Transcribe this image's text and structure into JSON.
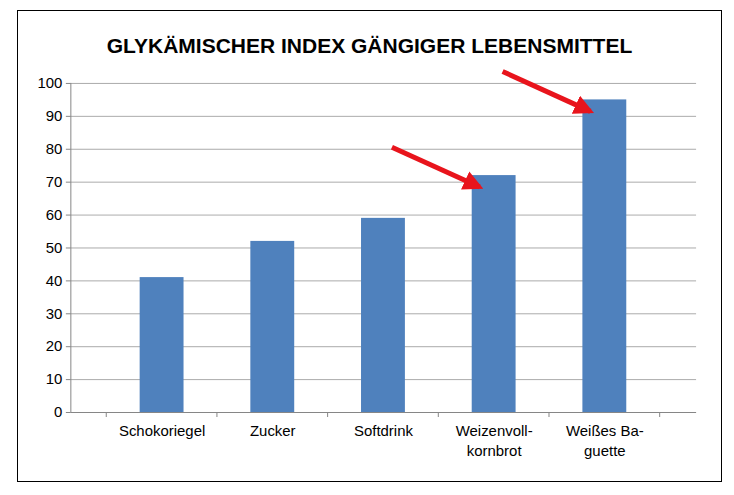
{
  "chart_data": {
    "type": "bar",
    "title": "GLYKÄMISCHER INDEX GÄNGIGER LEBENSMITTEL",
    "categories": [
      "Schokoriegel",
      "Zucker",
      "Softdrink",
      "Weizenvoll-\nkornbrot",
      "Weißes Ba-\nguette"
    ],
    "values": [
      41,
      52,
      59,
      72,
      95
    ],
    "color": "#4f81bd",
    "ylim": [
      0,
      100
    ],
    "yticks": [
      0,
      10,
      20,
      30,
      40,
      50,
      60,
      70,
      80,
      90,
      100
    ],
    "grid": true
  }
}
